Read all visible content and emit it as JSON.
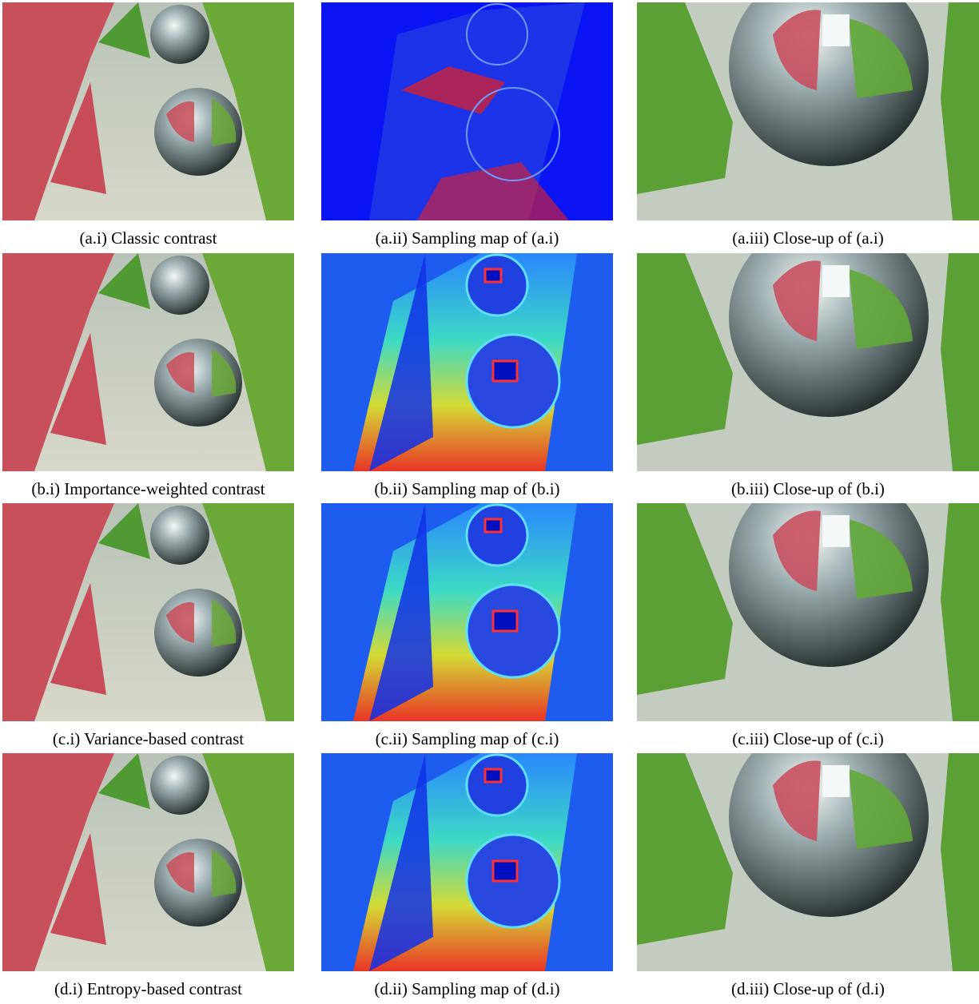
{
  "figure": {
    "rows": [
      [
        "(a.i) Classic contrast",
        "(a.ii) Sampling map of (a.i)",
        "(a.iii) Close-up of (a.i)"
      ],
      [
        "(b.i) Importance-weighted contrast",
        "(b.ii) Sampling map of (b.i)",
        "(b.iii) Close-up of (b.i)"
      ],
      [
        "(c.i) Variance-based contrast",
        "(c.ii) Sampling map of (c.i)",
        "(c.iii) Close-up of (c.i)"
      ],
      [
        "(d.i) Entropy-based contrast",
        "(d.ii) Sampling map of (d.i)",
        "(d.iii) Close-up of (d.i)"
      ]
    ]
  }
}
